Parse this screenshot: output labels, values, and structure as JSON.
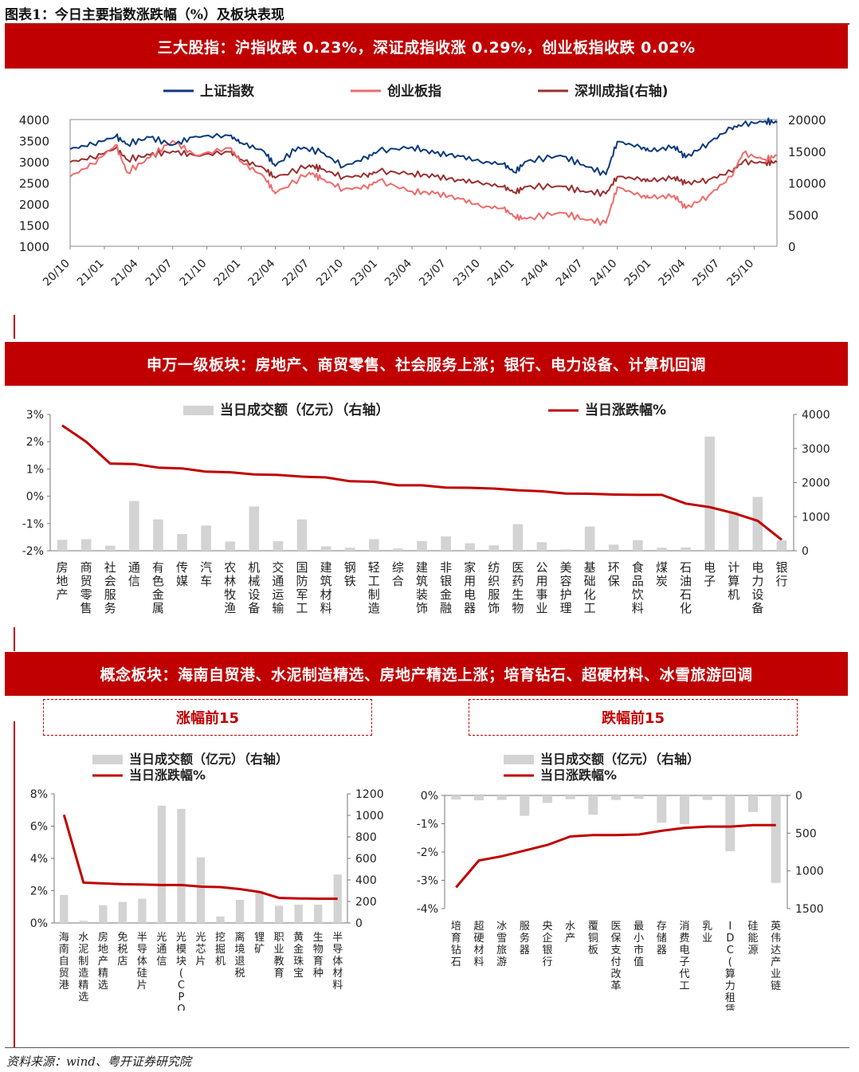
{
  "figure_title": "图表1：今日主要指数涨跌幅（%）及板块表现",
  "banner1": "三大股指：沪指收跌 0.23%，深证成指收涨 0.29%，创业板指收跌 0.02%",
  "banner2": "申万一级板块：房地产、商贸零售、社会服务上涨；银行、电力设备、计算机回调",
  "banner3": "概念板块：海南自贸港、水泥制造精选、房地产精选上涨；培育钻石、超硬材料、冰雪旅游回调",
  "box_top": "涨幅前15",
  "box_bottom": "跌幅前15",
  "source": "资料来源：wind、粤开证券研究院",
  "colors": {
    "red": "#c00000",
    "navy": "#0b3a7e",
    "pink": "#f06a6a",
    "maroon": "#9b2f2f",
    "grey": "#d3d3d3"
  },
  "chart_data": [
    {
      "type": "line",
      "legend": [
        "上证指数",
        "创业板指",
        "深圳成指(右轴)"
      ],
      "x_ticks": [
        "20/10",
        "21/01",
        "21/04",
        "21/07",
        "21/10",
        "22/01",
        "22/04",
        "22/07",
        "22/10",
        "23/01",
        "23/04",
        "23/07",
        "23/10",
        "24/01",
        "24/04",
        "24/07",
        "24/10",
        "25/01",
        "25/04",
        "25/07",
        "25/10"
      ],
      "ylim_left": [
        1000,
        4000
      ],
      "yticks_left": [
        1000,
        1500,
        2000,
        2500,
        3000,
        3500,
        4000
      ],
      "ylim_right": [
        0,
        20000
      ],
      "yticks_right": [
        0,
        5000,
        10000,
        15000,
        20000
      ],
      "series": [
        {
          "name": "上证指数",
          "axis": "left",
          "points": [
            [
              "20/10",
              3300
            ],
            [
              "20/12",
              3420
            ],
            [
              "21/02",
              3600
            ],
            [
              "21/03",
              3420
            ],
            [
              "21/05",
              3580
            ],
            [
              "21/07",
              3400
            ],
            [
              "21/09",
              3600
            ],
            [
              "21/12",
              3620
            ],
            [
              "22/01",
              3450
            ],
            [
              "22/03",
              3250
            ],
            [
              "22/04",
              2900
            ],
            [
              "22/06",
              3350
            ],
            [
              "22/08",
              3230
            ],
            [
              "22/10",
              2890
            ],
            [
              "22/12",
              3100
            ],
            [
              "23/01",
              3250
            ],
            [
              "23/04",
              3350
            ],
            [
              "23/06",
              3200
            ],
            [
              "23/08",
              3150
            ],
            [
              "23/10",
              3000
            ],
            [
              "23/12",
              2950
            ],
            [
              "24/01",
              2750
            ],
            [
              "24/02",
              3010
            ],
            [
              "24/05",
              3150
            ],
            [
              "24/07",
              2930
            ],
            [
              "24/09",
              2700
            ],
            [
              "24/10",
              3480
            ],
            [
              "24/12",
              3350
            ],
            [
              "25/01",
              3250
            ],
            [
              "25/03",
              3370
            ],
            [
              "25/04",
              3100
            ],
            [
              "25/06",
              3450
            ],
            [
              "25/08",
              3800
            ],
            [
              "25/09",
              3880
            ],
            [
              "25/11",
              3960
            ],
            [
              "25/12",
              3930
            ]
          ]
        },
        {
          "name": "创业板指",
          "axis": "left",
          "points": [
            [
              "20/10",
              2650
            ],
            [
              "20/12",
              2950
            ],
            [
              "21/02",
              3400
            ],
            [
              "21/03",
              2750
            ],
            [
              "21/05",
              3100
            ],
            [
              "21/07",
              3500
            ],
            [
              "21/09",
              3150
            ],
            [
              "21/12",
              3330
            ],
            [
              "22/01",
              3000
            ],
            [
              "22/03",
              2650
            ],
            [
              "22/04",
              2250
            ],
            [
              "22/07",
              2750
            ],
            [
              "22/08",
              2600
            ],
            [
              "22/10",
              2350
            ],
            [
              "22/12",
              2400
            ],
            [
              "23/01",
              2550
            ],
            [
              "23/04",
              2300
            ],
            [
              "23/06",
              2250
            ],
            [
              "23/08",
              2150
            ],
            [
              "23/10",
              1950
            ],
            [
              "23/12",
              1900
            ],
            [
              "24/01",
              1700
            ],
            [
              "24/02",
              1650
            ],
            [
              "24/05",
              1800
            ],
            [
              "24/07",
              1650
            ],
            [
              "24/09",
              1550
            ],
            [
              "24/10",
              2400
            ],
            [
              "24/12",
              2200
            ],
            [
              "25/01",
              2150
            ],
            [
              "25/03",
              2200
            ],
            [
              "25/04",
              1900
            ],
            [
              "25/06",
              2200
            ],
            [
              "25/08",
              2650
            ],
            [
              "25/09",
              3200
            ],
            [
              "25/11",
              3050
            ],
            [
              "25/12",
              3150
            ]
          ]
        },
        {
          "name": "深圳成指(右轴)",
          "axis": "right",
          "points": [
            [
              "20/10",
              13300
            ],
            [
              "20/12",
              14000
            ],
            [
              "21/02",
              15500
            ],
            [
              "21/03",
              13700
            ],
            [
              "21/05",
              14400
            ],
            [
              "21/07",
              15000
            ],
            [
              "21/09",
              14300
            ],
            [
              "21/12",
              14900
            ],
            [
              "22/01",
              13700
            ],
            [
              "22/03",
              12300
            ],
            [
              "22/04",
              10800
            ],
            [
              "22/07",
              12800
            ],
            [
              "22/08",
              12200
            ],
            [
              "22/10",
              10900
            ],
            [
              "22/12",
              11200
            ],
            [
              "23/01",
              11800
            ],
            [
              "23/04",
              11500
            ],
            [
              "23/06",
              11000
            ],
            [
              "23/08",
              10500
            ],
            [
              "23/10",
              10000
            ],
            [
              "23/12",
              9400
            ],
            [
              "24/01",
              8500
            ],
            [
              "24/02",
              9400
            ],
            [
              "24/05",
              9500
            ],
            [
              "24/07",
              8700
            ],
            [
              "24/09",
              8300
            ],
            [
              "24/10",
              11000
            ],
            [
              "24/12",
              10600
            ],
            [
              "25/01",
              10300
            ],
            [
              "25/03",
              10900
            ],
            [
              "25/04",
              9900
            ],
            [
              "25/06",
              10500
            ],
            [
              "25/08",
              11800
            ],
            [
              "25/09",
              13300
            ],
            [
              "25/11",
              13200
            ],
            [
              "25/12",
              13300
            ]
          ]
        }
      ]
    },
    {
      "type": "bar+line",
      "legend": [
        "当日成交额（亿元）（右轴）",
        "当日涨跌幅%"
      ],
      "categories": [
        "房地产",
        "商贸零售",
        "社会服务",
        "通信",
        "有色金属",
        "传媒",
        "汽车",
        "农林牧渔",
        "机械设备",
        "交通运输",
        "国防军工",
        "建筑材料",
        "钢铁",
        "轻工制造",
        "综合",
        "建筑装饰",
        "非银金融",
        "家用电器",
        "纺织服饰",
        "医药生物",
        "公用事业",
        "美容护理",
        "基础化工",
        "环保",
        "食品饮料",
        "煤炭",
        "石油石化",
        "电子",
        "计算机",
        "电力设备",
        "银行"
      ],
      "ylim_left": [
        -2,
        3
      ],
      "yticks_left": [
        "3%",
        "2%",
        "1%",
        "0%",
        "-1%",
        "-2%"
      ],
      "ylim_right": [
        0,
        4000
      ],
      "yticks_right": [
        0,
        1000,
        2000,
        3000,
        4000
      ],
      "series": [
        {
          "name": "当日涨跌幅%",
          "values": [
            2.6,
            2.0,
            1.2,
            1.18,
            1.05,
            1.02,
            0.9,
            0.88,
            0.8,
            0.78,
            0.72,
            0.69,
            0.55,
            0.53,
            0.4,
            0.4,
            0.32,
            0.31,
            0.28,
            0.22,
            0.18,
            0.1,
            0.09,
            0.06,
            0.05,
            0.05,
            -0.27,
            -0.4,
            -0.62,
            -0.9,
            -1.6
          ]
        },
        {
          "name": "当日成交额（亿元）（右轴）",
          "values": [
            320,
            340,
            150,
            1460,
            920,
            490,
            740,
            270,
            1300,
            280,
            920,
            130,
            90,
            340,
            65,
            280,
            420,
            220,
            160,
            780,
            250,
            40,
            710,
            180,
            310,
            90,
            100,
            3350,
            1150,
            1580,
            300
          ]
        }
      ]
    },
    {
      "type": "bar+line",
      "legend": [
        "当日成交额（亿元）（右轴）",
        "当日涨跌幅%"
      ],
      "categories": [
        "海南自贸港",
        "水泥制造精选",
        "房地产精选",
        "免税店",
        "半导体硅片",
        "光通信",
        "光模块(CPO)",
        "光芯片",
        "挖掘机",
        "离境退税",
        "锂矿",
        "职业教育",
        "黄金珠宝",
        "生物育种",
        "半导体材料"
      ],
      "ylim_left": [
        0,
        8
      ],
      "yticks_left": [
        "8%",
        "6%",
        "4%",
        "2%",
        "0%"
      ],
      "ylim_right": [
        0,
        1200
      ],
      "yticks_right": [
        0,
        200,
        400,
        600,
        800,
        1000,
        1200
      ],
      "series": [
        {
          "name": "当日涨跌幅%",
          "values": [
            6.7,
            2.5,
            2.45,
            2.4,
            2.38,
            2.35,
            2.35,
            2.25,
            2.22,
            2.1,
            1.92,
            1.55,
            1.52,
            1.5,
            1.5
          ]
        },
        {
          "name": "当日成交额（亿元）（右轴）",
          "values": [
            260,
            20,
            165,
            195,
            225,
            1090,
            1060,
            610,
            60,
            215,
            300,
            160,
            170,
            170,
            450
          ]
        }
      ]
    },
    {
      "type": "bar+line",
      "legend": [
        "当日成交额（亿元）（右轴）",
        "当日涨跌幅%"
      ],
      "categories": [
        "培育钻石",
        "超硬材料",
        "冰雪旅游",
        "服务器",
        "央企银行",
        "水产",
        "覆铜板",
        "医保支付改革",
        "最小市值",
        "存储器",
        "消费电子代工",
        "乳业",
        "IDC(算力租赁)",
        "硅能源",
        "英伟达产业链"
      ],
      "ylim_left": [
        -4,
        0
      ],
      "yticks_left": [
        "0%",
        "-1%",
        "-2%",
        "-3%",
        "-4%"
      ],
      "ylim_right": [
        0,
        1500
      ],
      "yticks_right": [
        0,
        500,
        1000,
        1500
      ],
      "series": [
        {
          "name": "当日涨跌幅%",
          "values": [
            -3.25,
            -2.3,
            -2.15,
            -1.95,
            -1.75,
            -1.45,
            -1.4,
            -1.4,
            -1.38,
            -1.25,
            -1.15,
            -1.1,
            -1.1,
            -1.05,
            -1.05
          ]
        },
        {
          "name": "当日成交额（亿元）（右轴）",
          "values": [
            55,
            65,
            60,
            270,
            100,
            50,
            255,
            60,
            45,
            360,
            380,
            60,
            740,
            220,
            1160
          ]
        }
      ]
    }
  ]
}
